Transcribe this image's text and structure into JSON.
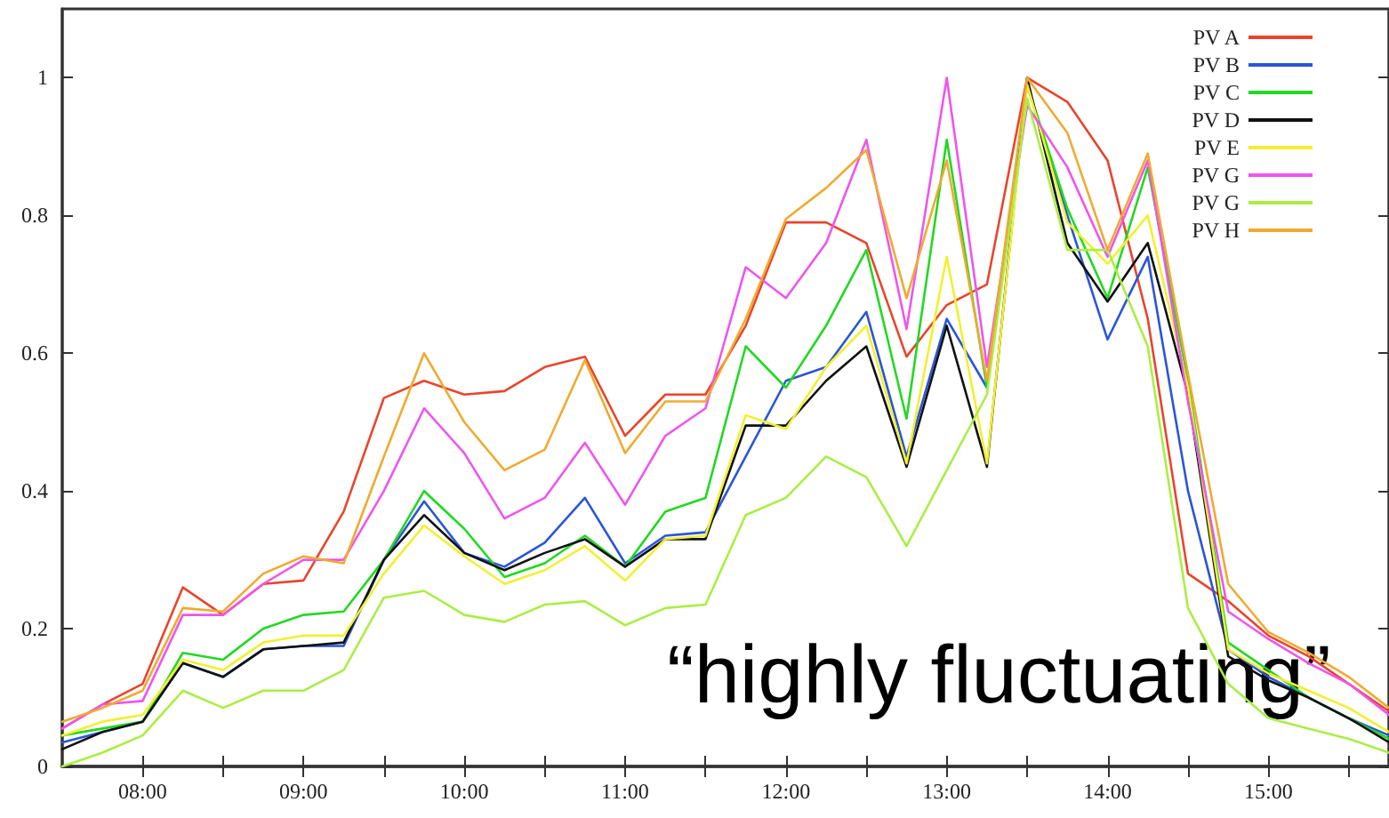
{
  "chart_data": {
    "type": "line",
    "annotations": [
      "“highly fluctuating”"
    ],
    "x": [
      7.5,
      7.75,
      8,
      8.25,
      8.5,
      8.75,
      9,
      9.25,
      9.5,
      9.75,
      10,
      10.25,
      10.5,
      10.75,
      11,
      11.25,
      11.5,
      11.75,
      12,
      12.25,
      12.5,
      12.75,
      13,
      13.25,
      13.5,
      13.75,
      14,
      14.25,
      14.5,
      14.75,
      15,
      15.25,
      15.5,
      15.75
    ],
    "series": [
      {
        "name": "PV A",
        "color": "#e8452c",
        "values": [
          0.055,
          0.09,
          0.12,
          0.26,
          0.22,
          0.265,
          0.27,
          0.37,
          0.535,
          0.56,
          0.54,
          0.545,
          0.58,
          0.595,
          0.48,
          0.54,
          0.54,
          0.64,
          0.79,
          0.79,
          0.76,
          0.595,
          0.67,
          0.7,
          1.0,
          0.965,
          0.88,
          0.65,
          0.28,
          0.24,
          0.19,
          0.16,
          0.12,
          0.08
        ]
      },
      {
        "name": "PV B",
        "color": "#2a55d8",
        "values": [
          0.035,
          0.05,
          0.065,
          0.15,
          0.13,
          0.17,
          0.175,
          0.175,
          0.3,
          0.385,
          0.31,
          0.29,
          0.325,
          0.39,
          0.295,
          0.335,
          0.34,
          0.45,
          0.56,
          0.58,
          0.66,
          0.45,
          0.65,
          0.55,
          0.99,
          0.8,
          0.62,
          0.74,
          0.4,
          0.17,
          0.13,
          0.1,
          0.07,
          0.045
        ]
      },
      {
        "name": "PV C",
        "color": "#22d822",
        "values": [
          0.045,
          0.055,
          0.065,
          0.165,
          0.155,
          0.2,
          0.22,
          0.225,
          0.3,
          0.4,
          0.345,
          0.275,
          0.295,
          0.335,
          0.29,
          0.37,
          0.39,
          0.61,
          0.55,
          0.64,
          0.75,
          0.505,
          0.91,
          0.55,
          0.99,
          0.81,
          0.68,
          0.87,
          0.56,
          0.18,
          0.14,
          0.1,
          0.07,
          0.04
        ]
      },
      {
        "name": "PV D",
        "color": "#111111",
        "values": [
          0.025,
          0.05,
          0.065,
          0.15,
          0.13,
          0.17,
          0.175,
          0.18,
          0.3,
          0.365,
          0.31,
          0.285,
          0.31,
          0.33,
          0.29,
          0.33,
          0.33,
          0.495,
          0.495,
          0.56,
          0.61,
          0.435,
          0.64,
          0.435,
          1.0,
          0.76,
          0.675,
          0.76,
          0.54,
          0.16,
          0.125,
          0.1,
          0.07,
          0.035
        ]
      },
      {
        "name": "PV E",
        "color": "#f2f030",
        "values": [
          0.045,
          0.065,
          0.075,
          0.155,
          0.14,
          0.18,
          0.19,
          0.19,
          0.28,
          0.35,
          0.305,
          0.265,
          0.285,
          0.32,
          0.27,
          0.33,
          0.335,
          0.51,
          0.49,
          0.58,
          0.64,
          0.44,
          0.74,
          0.44,
          0.99,
          0.79,
          0.73,
          0.8,
          0.55,
          0.17,
          0.135,
          0.11,
          0.085,
          0.05
        ]
      },
      {
        "name": "PV G",
        "color": "#ee55ee",
        "values": [
          0.055,
          0.09,
          0.095,
          0.22,
          0.22,
          0.265,
          0.3,
          0.3,
          0.4,
          0.52,
          0.455,
          0.36,
          0.39,
          0.47,
          0.38,
          0.48,
          0.52,
          0.725,
          0.68,
          0.76,
          0.91,
          0.635,
          1.0,
          0.58,
          0.96,
          0.87,
          0.74,
          0.88,
          0.53,
          0.225,
          0.185,
          0.15,
          0.12,
          0.075
        ]
      },
      {
        "name": "PV G",
        "color": "#aaee44",
        "values": [
          0.0,
          0.02,
          0.045,
          0.11,
          0.085,
          0.11,
          0.11,
          0.14,
          0.245,
          0.255,
          0.22,
          0.21,
          0.235,
          0.24,
          0.205,
          0.23,
          0.235,
          0.365,
          0.39,
          0.45,
          0.42,
          0.32,
          0.43,
          0.54,
          0.97,
          0.75,
          0.75,
          0.61,
          0.23,
          0.12,
          0.07,
          0.055,
          0.04,
          0.02
        ]
      },
      {
        "name": "PV H",
        "color": "#f0aa30",
        "values": [
          0.065,
          0.085,
          0.11,
          0.23,
          0.225,
          0.28,
          0.305,
          0.295,
          0.45,
          0.6,
          0.5,
          0.43,
          0.46,
          0.59,
          0.455,
          0.53,
          0.53,
          0.65,
          0.795,
          0.84,
          0.895,
          0.68,
          0.88,
          0.56,
          1.0,
          0.92,
          0.75,
          0.89,
          0.57,
          0.265,
          0.195,
          0.165,
          0.13,
          0.085
        ]
      }
    ],
    "xlim": [
      7.5,
      15.75
    ],
    "xticks": [
      {
        "value": 8,
        "label": "08:00"
      },
      {
        "value": 8.5,
        "label": null
      },
      {
        "value": 9,
        "label": "09:00"
      },
      {
        "value": 9.5,
        "label": null
      },
      {
        "value": 10,
        "label": "10:00"
      },
      {
        "value": 10.5,
        "label": null
      },
      {
        "value": 11,
        "label": "11:00"
      },
      {
        "value": 11.5,
        "label": null
      },
      {
        "value": 12,
        "label": "12:00"
      },
      {
        "value": 12.5,
        "label": null
      },
      {
        "value": 13,
        "label": "13:00"
      },
      {
        "value": 13.5,
        "label": null
      },
      {
        "value": 14,
        "label": "14:00"
      },
      {
        "value": 14.5,
        "label": null
      },
      {
        "value": 15,
        "label": "15:00"
      },
      {
        "value": 15.5,
        "label": null
      }
    ],
    "ylim": [
      0,
      1.1
    ],
    "yticks": [
      0,
      0.2,
      0.4,
      0.6,
      0.8,
      1
    ],
    "grid": false,
    "legend": "top right",
    "marker": "none",
    "line_style": "solid"
  }
}
